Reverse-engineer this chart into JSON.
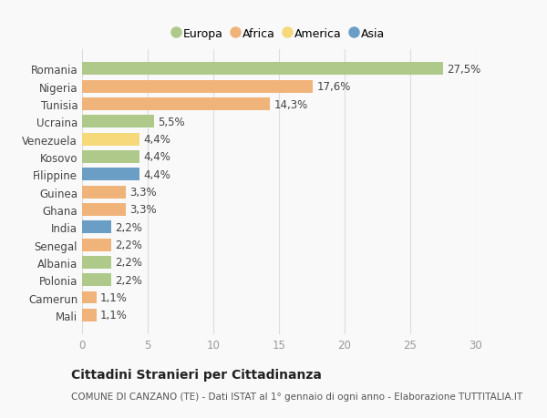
{
  "countries": [
    "Romania",
    "Nigeria",
    "Tunisia",
    "Ucraina",
    "Venezuela",
    "Kosovo",
    "Filippine",
    "Guinea",
    "Ghana",
    "India",
    "Senegal",
    "Albania",
    "Polonia",
    "Camerun",
    "Mali"
  ],
  "values": [
    27.5,
    17.6,
    14.3,
    5.5,
    4.4,
    4.4,
    4.4,
    3.3,
    3.3,
    2.2,
    2.2,
    2.2,
    2.2,
    1.1,
    1.1
  ],
  "labels": [
    "27,5%",
    "17,6%",
    "14,3%",
    "5,5%",
    "4,4%",
    "4,4%",
    "4,4%",
    "3,3%",
    "3,3%",
    "2,2%",
    "2,2%",
    "2,2%",
    "2,2%",
    "1,1%",
    "1,1%"
  ],
  "colors": [
    "#aec98a",
    "#f0b47a",
    "#f0b47a",
    "#aec98a",
    "#f5d97a",
    "#aec98a",
    "#6b9ec4",
    "#f0b47a",
    "#f0b47a",
    "#6b9ec4",
    "#f0b47a",
    "#aec98a",
    "#aec98a",
    "#f0b47a",
    "#f0b47a"
  ],
  "legend_labels": [
    "Europa",
    "Africa",
    "America",
    "Asia"
  ],
  "legend_colors": [
    "#aec98a",
    "#f0b47a",
    "#f5d97a",
    "#6b9ec4"
  ],
  "title": "Cittadini Stranieri per Cittadinanza",
  "subtitle": "COMUNE DI CANZANO (TE) - Dati ISTAT al 1° gennaio di ogni anno - Elaborazione TUTTITALIA.IT",
  "xlim": [
    0,
    30
  ],
  "xticks": [
    0,
    5,
    10,
    15,
    20,
    25,
    30
  ],
  "background_color": "#f9f9f9",
  "bar_height": 0.72,
  "label_fontsize": 8.5,
  "ytick_fontsize": 8.5,
  "xtick_fontsize": 8.5,
  "title_fontsize": 10,
  "subtitle_fontsize": 7.5
}
